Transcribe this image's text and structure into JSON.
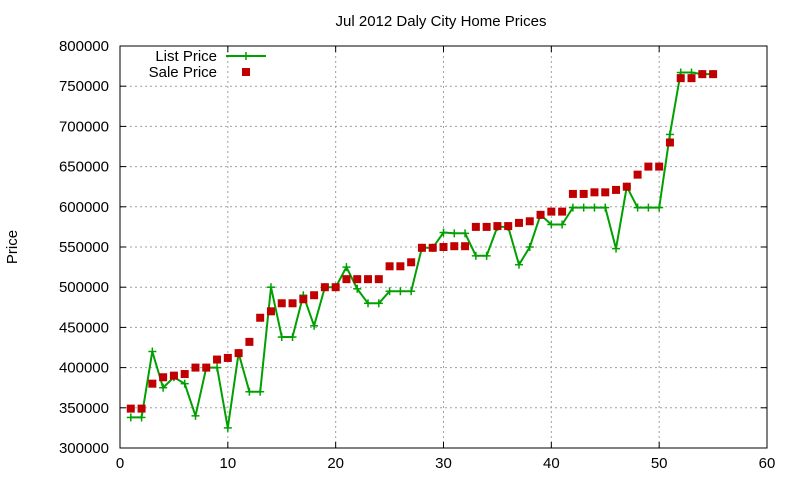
{
  "chart_data": {
    "type": "line",
    "title": "Jul 2012 Daly City Home Prices",
    "xlabel": "",
    "ylabel": "Price",
    "xlim": [
      0,
      60
    ],
    "ylim": [
      300000,
      800000
    ],
    "xticks": [
      0,
      10,
      20,
      30,
      40,
      50,
      60
    ],
    "yticks": [
      300000,
      350000,
      400000,
      450000,
      500000,
      550000,
      600000,
      650000,
      700000,
      750000,
      800000
    ],
    "grid": true,
    "legend_position": "top-left",
    "series": [
      {
        "name": "List Price",
        "style": "line+plus",
        "color": "#00a000",
        "x": [
          1,
          2,
          3,
          4,
          5,
          6,
          7,
          8,
          9,
          10,
          11,
          12,
          13,
          14,
          15,
          16,
          17,
          18,
          19,
          20,
          21,
          22,
          23,
          24,
          25,
          26,
          27,
          28,
          29,
          30,
          31,
          32,
          33,
          34,
          35,
          36,
          37,
          38,
          39,
          40,
          41,
          42,
          43,
          44,
          45,
          46,
          47,
          48,
          49,
          50,
          51,
          52,
          53,
          54,
          55
        ],
        "y": [
          338000,
          338000,
          420000,
          375000,
          388000,
          380000,
          340000,
          400000,
          400000,
          325000,
          418000,
          370000,
          370000,
          500000,
          438000,
          438000,
          490000,
          452000,
          500000,
          500000,
          525000,
          498000,
          480000,
          480000,
          495000,
          495000,
          495000,
          549000,
          549000,
          568000,
          567000,
          567000,
          539000,
          539000,
          575000,
          575000,
          528000,
          550000,
          590000,
          578000,
          578000,
          599000,
          599000,
          599000,
          599000,
          548000,
          625000,
          599000,
          599000,
          599000,
          690000,
          767000,
          767000,
          765000,
          765000
        ]
      },
      {
        "name": "Sale Price",
        "style": "squares",
        "color": "#c00000",
        "x": [
          1,
          2,
          3,
          4,
          5,
          6,
          7,
          8,
          9,
          10,
          11,
          12,
          13,
          14,
          15,
          16,
          17,
          18,
          19,
          20,
          21,
          22,
          23,
          24,
          25,
          26,
          27,
          28,
          29,
          30,
          31,
          32,
          33,
          34,
          35,
          36,
          37,
          38,
          39,
          40,
          41,
          42,
          43,
          44,
          45,
          46,
          47,
          48,
          49,
          50,
          51,
          52,
          53,
          54,
          55
        ],
        "y": [
          349000,
          349000,
          380000,
          388000,
          390000,
          392000,
          400000,
          400000,
          410000,
          412000,
          418000,
          432000,
          462000,
          470000,
          480000,
          480000,
          485000,
          490000,
          500000,
          500000,
          510000,
          510000,
          510000,
          510000,
          526000,
          526000,
          531000,
          549000,
          549000,
          550000,
          551000,
          551000,
          575000,
          575000,
          576000,
          576000,
          580000,
          582000,
          590000,
          594000,
          594000,
          616000,
          616000,
          618000,
          618000,
          621000,
          625000,
          640000,
          650000,
          650000,
          680000,
          760000,
          760000,
          765000,
          765000
        ]
      }
    ]
  }
}
